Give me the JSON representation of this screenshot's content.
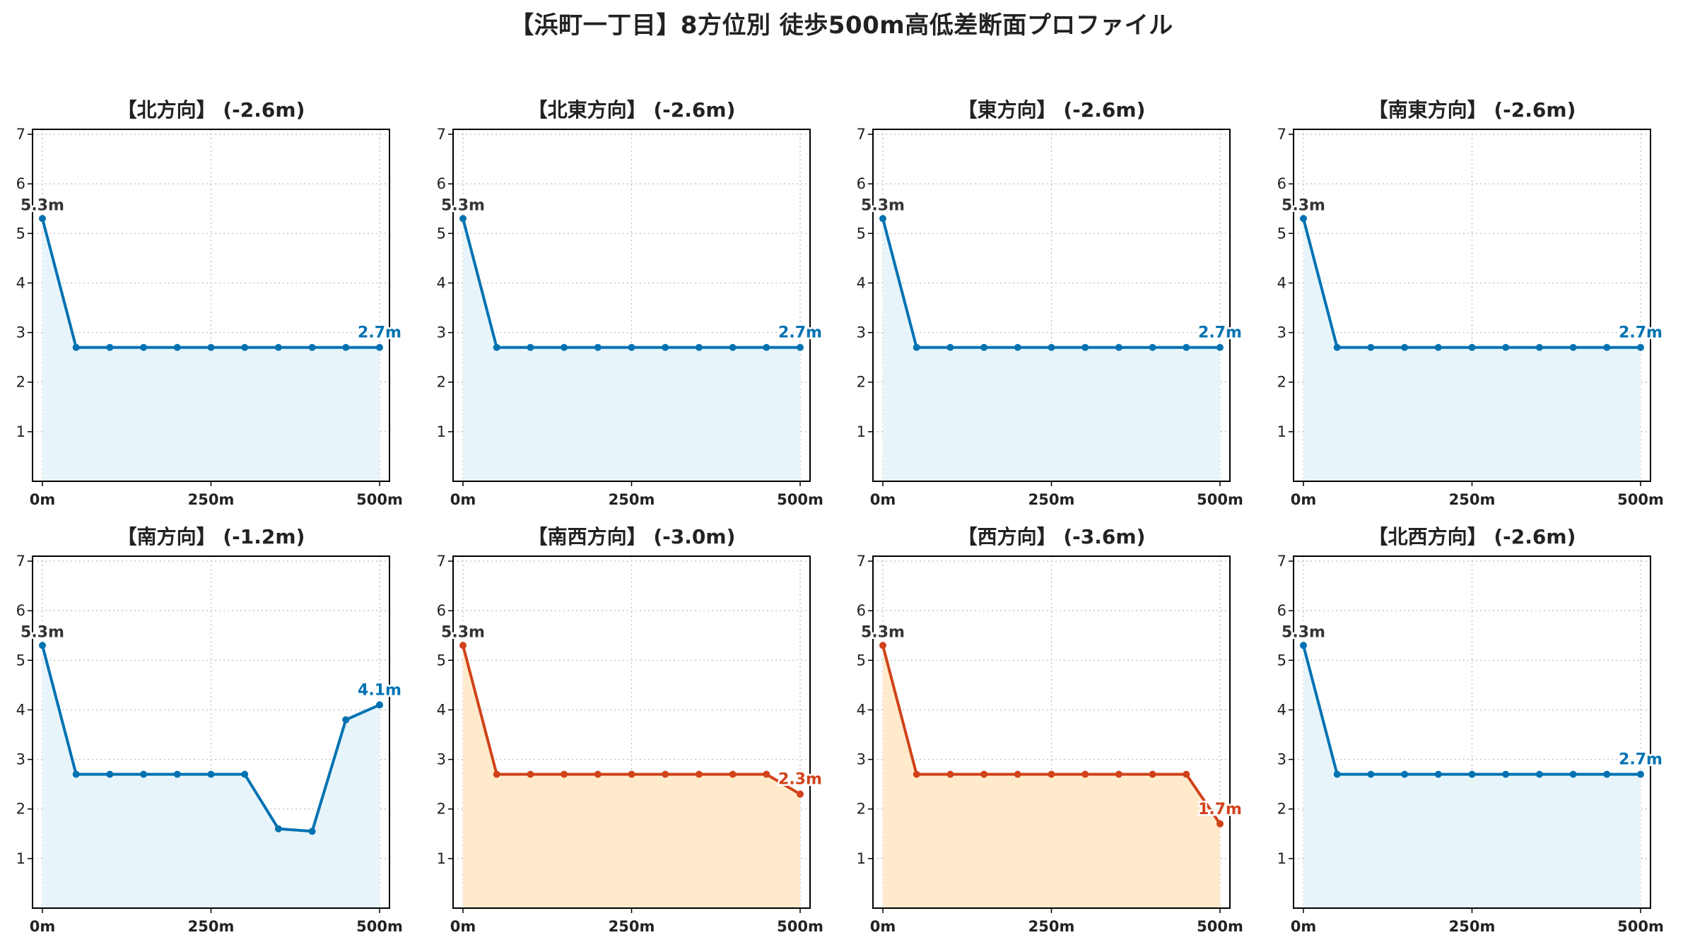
{
  "title": "【浜町一丁目】8方位別 徒歩500m高低差断面プロファイル",
  "colors": {
    "normal_line": "#0072B2",
    "normal_fill": "#E7F5FB",
    "drop_line": "#D1421A",
    "drop_fill": "#FFEBCC",
    "grid": "#bbbbbb",
    "start_label": "#333333"
  },
  "chart_data": [
    {
      "type": "area",
      "title": "【北方向】 (-2.6m)",
      "theme": "normal",
      "x": [
        0,
        50,
        100,
        150,
        200,
        250,
        300,
        350,
        400,
        450,
        500
      ],
      "y": [
        5.3,
        2.7,
        2.7,
        2.7,
        2.7,
        2.7,
        2.7,
        2.7,
        2.7,
        2.7,
        2.7
      ],
      "start_label": "5.3m",
      "end_label": "2.7m",
      "xticks": [
        "0m",
        "250m",
        "500m"
      ],
      "yticks": [
        1,
        2,
        3,
        4,
        5,
        6,
        7
      ],
      "xlim": [
        0,
        500
      ],
      "ylim": [
        0,
        7.1
      ],
      "grid": true
    },
    {
      "type": "area",
      "title": "【北東方向】 (-2.6m)",
      "theme": "normal",
      "x": [
        0,
        50,
        100,
        150,
        200,
        250,
        300,
        350,
        400,
        450,
        500
      ],
      "y": [
        5.3,
        2.7,
        2.7,
        2.7,
        2.7,
        2.7,
        2.7,
        2.7,
        2.7,
        2.7,
        2.7
      ],
      "start_label": "5.3m",
      "end_label": "2.7m",
      "xticks": [
        "0m",
        "250m",
        "500m"
      ],
      "yticks": [
        1,
        2,
        3,
        4,
        5,
        6,
        7
      ],
      "xlim": [
        0,
        500
      ],
      "ylim": [
        0,
        7.1
      ],
      "grid": true
    },
    {
      "type": "area",
      "title": "【東方向】 (-2.6m)",
      "theme": "normal",
      "x": [
        0,
        50,
        100,
        150,
        200,
        250,
        300,
        350,
        400,
        450,
        500
      ],
      "y": [
        5.3,
        2.7,
        2.7,
        2.7,
        2.7,
        2.7,
        2.7,
        2.7,
        2.7,
        2.7,
        2.7
      ],
      "start_label": "5.3m",
      "end_label": "2.7m",
      "xticks": [
        "0m",
        "250m",
        "500m"
      ],
      "yticks": [
        1,
        2,
        3,
        4,
        5,
        6,
        7
      ],
      "xlim": [
        0,
        500
      ],
      "ylim": [
        0,
        7.1
      ],
      "grid": true
    },
    {
      "type": "area",
      "title": "【南東方向】 (-2.6m)",
      "theme": "normal",
      "x": [
        0,
        50,
        100,
        150,
        200,
        250,
        300,
        350,
        400,
        450,
        500
      ],
      "y": [
        5.3,
        2.7,
        2.7,
        2.7,
        2.7,
        2.7,
        2.7,
        2.7,
        2.7,
        2.7,
        2.7
      ],
      "start_label": "5.3m",
      "end_label": "2.7m",
      "xticks": [
        "0m",
        "250m",
        "500m"
      ],
      "yticks": [
        1,
        2,
        3,
        4,
        5,
        6,
        7
      ],
      "xlim": [
        0,
        500
      ],
      "ylim": [
        0,
        7.1
      ],
      "grid": true
    },
    {
      "type": "area",
      "title": "【南方向】 (-1.2m)",
      "theme": "normal",
      "x": [
        0,
        50,
        100,
        150,
        200,
        250,
        300,
        350,
        400,
        450,
        500
      ],
      "y": [
        5.3,
        2.7,
        2.7,
        2.7,
        2.7,
        2.7,
        2.7,
        1.6,
        1.55,
        3.8,
        4.1
      ],
      "start_label": "5.3m",
      "end_label": "4.1m",
      "xticks": [
        "0m",
        "250m",
        "500m"
      ],
      "yticks": [
        1,
        2,
        3,
        4,
        5,
        6,
        7
      ],
      "xlim": [
        0,
        500
      ],
      "ylim": [
        0,
        7.1
      ],
      "grid": true
    },
    {
      "type": "area",
      "title": "【南西方向】 (-3.0m)",
      "theme": "drop",
      "x": [
        0,
        50,
        100,
        150,
        200,
        250,
        300,
        350,
        400,
        450,
        500
      ],
      "y": [
        5.3,
        2.7,
        2.7,
        2.7,
        2.7,
        2.7,
        2.7,
        2.7,
        2.7,
        2.7,
        2.3
      ],
      "start_label": "5.3m",
      "end_label": "2.3m",
      "xticks": [
        "0m",
        "250m",
        "500m"
      ],
      "yticks": [
        1,
        2,
        3,
        4,
        5,
        6,
        7
      ],
      "xlim": [
        0,
        500
      ],
      "ylim": [
        0,
        7.1
      ],
      "grid": true
    },
    {
      "type": "area",
      "title": "【西方向】 (-3.6m)",
      "theme": "drop",
      "x": [
        0,
        50,
        100,
        150,
        200,
        250,
        300,
        350,
        400,
        450,
        500
      ],
      "y": [
        5.3,
        2.7,
        2.7,
        2.7,
        2.7,
        2.7,
        2.7,
        2.7,
        2.7,
        2.7,
        1.7
      ],
      "start_label": "5.3m",
      "end_label": "1.7m",
      "xticks": [
        "0m",
        "250m",
        "500m"
      ],
      "yticks": [
        1,
        2,
        3,
        4,
        5,
        6,
        7
      ],
      "xlim": [
        0,
        500
      ],
      "ylim": [
        0,
        7.1
      ],
      "grid": true
    },
    {
      "type": "area",
      "title": "【北西方向】 (-2.6m)",
      "theme": "normal",
      "x": [
        0,
        50,
        100,
        150,
        200,
        250,
        300,
        350,
        400,
        450,
        500
      ],
      "y": [
        5.3,
        2.7,
        2.7,
        2.7,
        2.7,
        2.7,
        2.7,
        2.7,
        2.7,
        2.7,
        2.7
      ],
      "start_label": "5.3m",
      "end_label": "2.7m",
      "xticks": [
        "0m",
        "250m",
        "500m"
      ],
      "yticks": [
        1,
        2,
        3,
        4,
        5,
        6,
        7
      ],
      "xlim": [
        0,
        500
      ],
      "ylim": [
        0,
        7.1
      ],
      "grid": true
    }
  ]
}
